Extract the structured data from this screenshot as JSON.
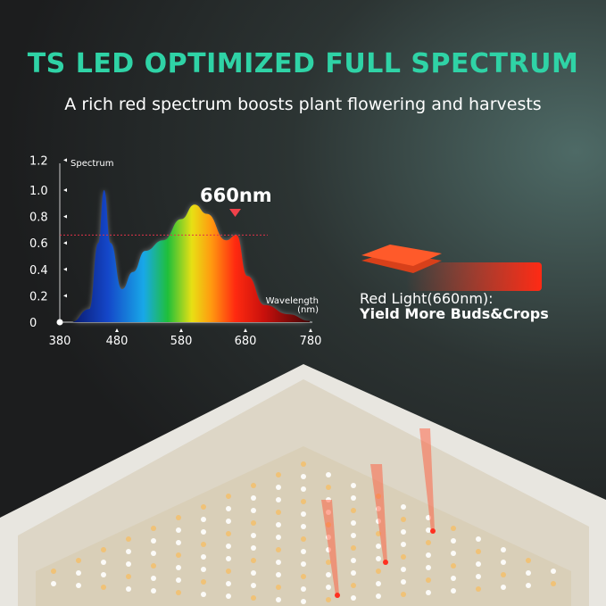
{
  "header": {
    "title": "TS LED OPTIMIZED FULL SPECTRUM",
    "subtitle": "A rich red spectrum boosts plant flowering and harvests"
  },
  "callout": {
    "line1": "Red Light(660nm):",
    "line2": "Yield More Buds&Crops",
    "color": "#ff3b1f"
  },
  "chart_data": {
    "type": "area",
    "ylabel": "Spectrum",
    "xlabel": "Wavelength (nm)",
    "xlabel_line1": "Wavelength",
    "xlabel_line2": "(nm)",
    "xlim": [
      380,
      780
    ],
    "ylim": [
      0,
      1.2
    ],
    "xticks": [
      "380",
      "480",
      "580",
      "680",
      "780"
    ],
    "yticks": [
      "0",
      "0.2",
      "0.4",
      "0.6",
      "0.8",
      "1.0",
      "1.2"
    ],
    "annotation": "660nm",
    "reference_line": 0.66,
    "x": [
      380,
      409,
      437,
      451,
      460,
      470,
      488,
      505,
      524,
      552,
      580,
      601,
      620,
      650,
      666,
      683,
      710,
      747,
      780
    ],
    "y": [
      0,
      0.0,
      0.1,
      0.6,
      1.0,
      0.6,
      0.25,
      0.38,
      0.54,
      0.62,
      0.78,
      0.89,
      0.82,
      0.62,
      0.66,
      0.35,
      0.13,
      0.06,
      0.01
    ]
  }
}
